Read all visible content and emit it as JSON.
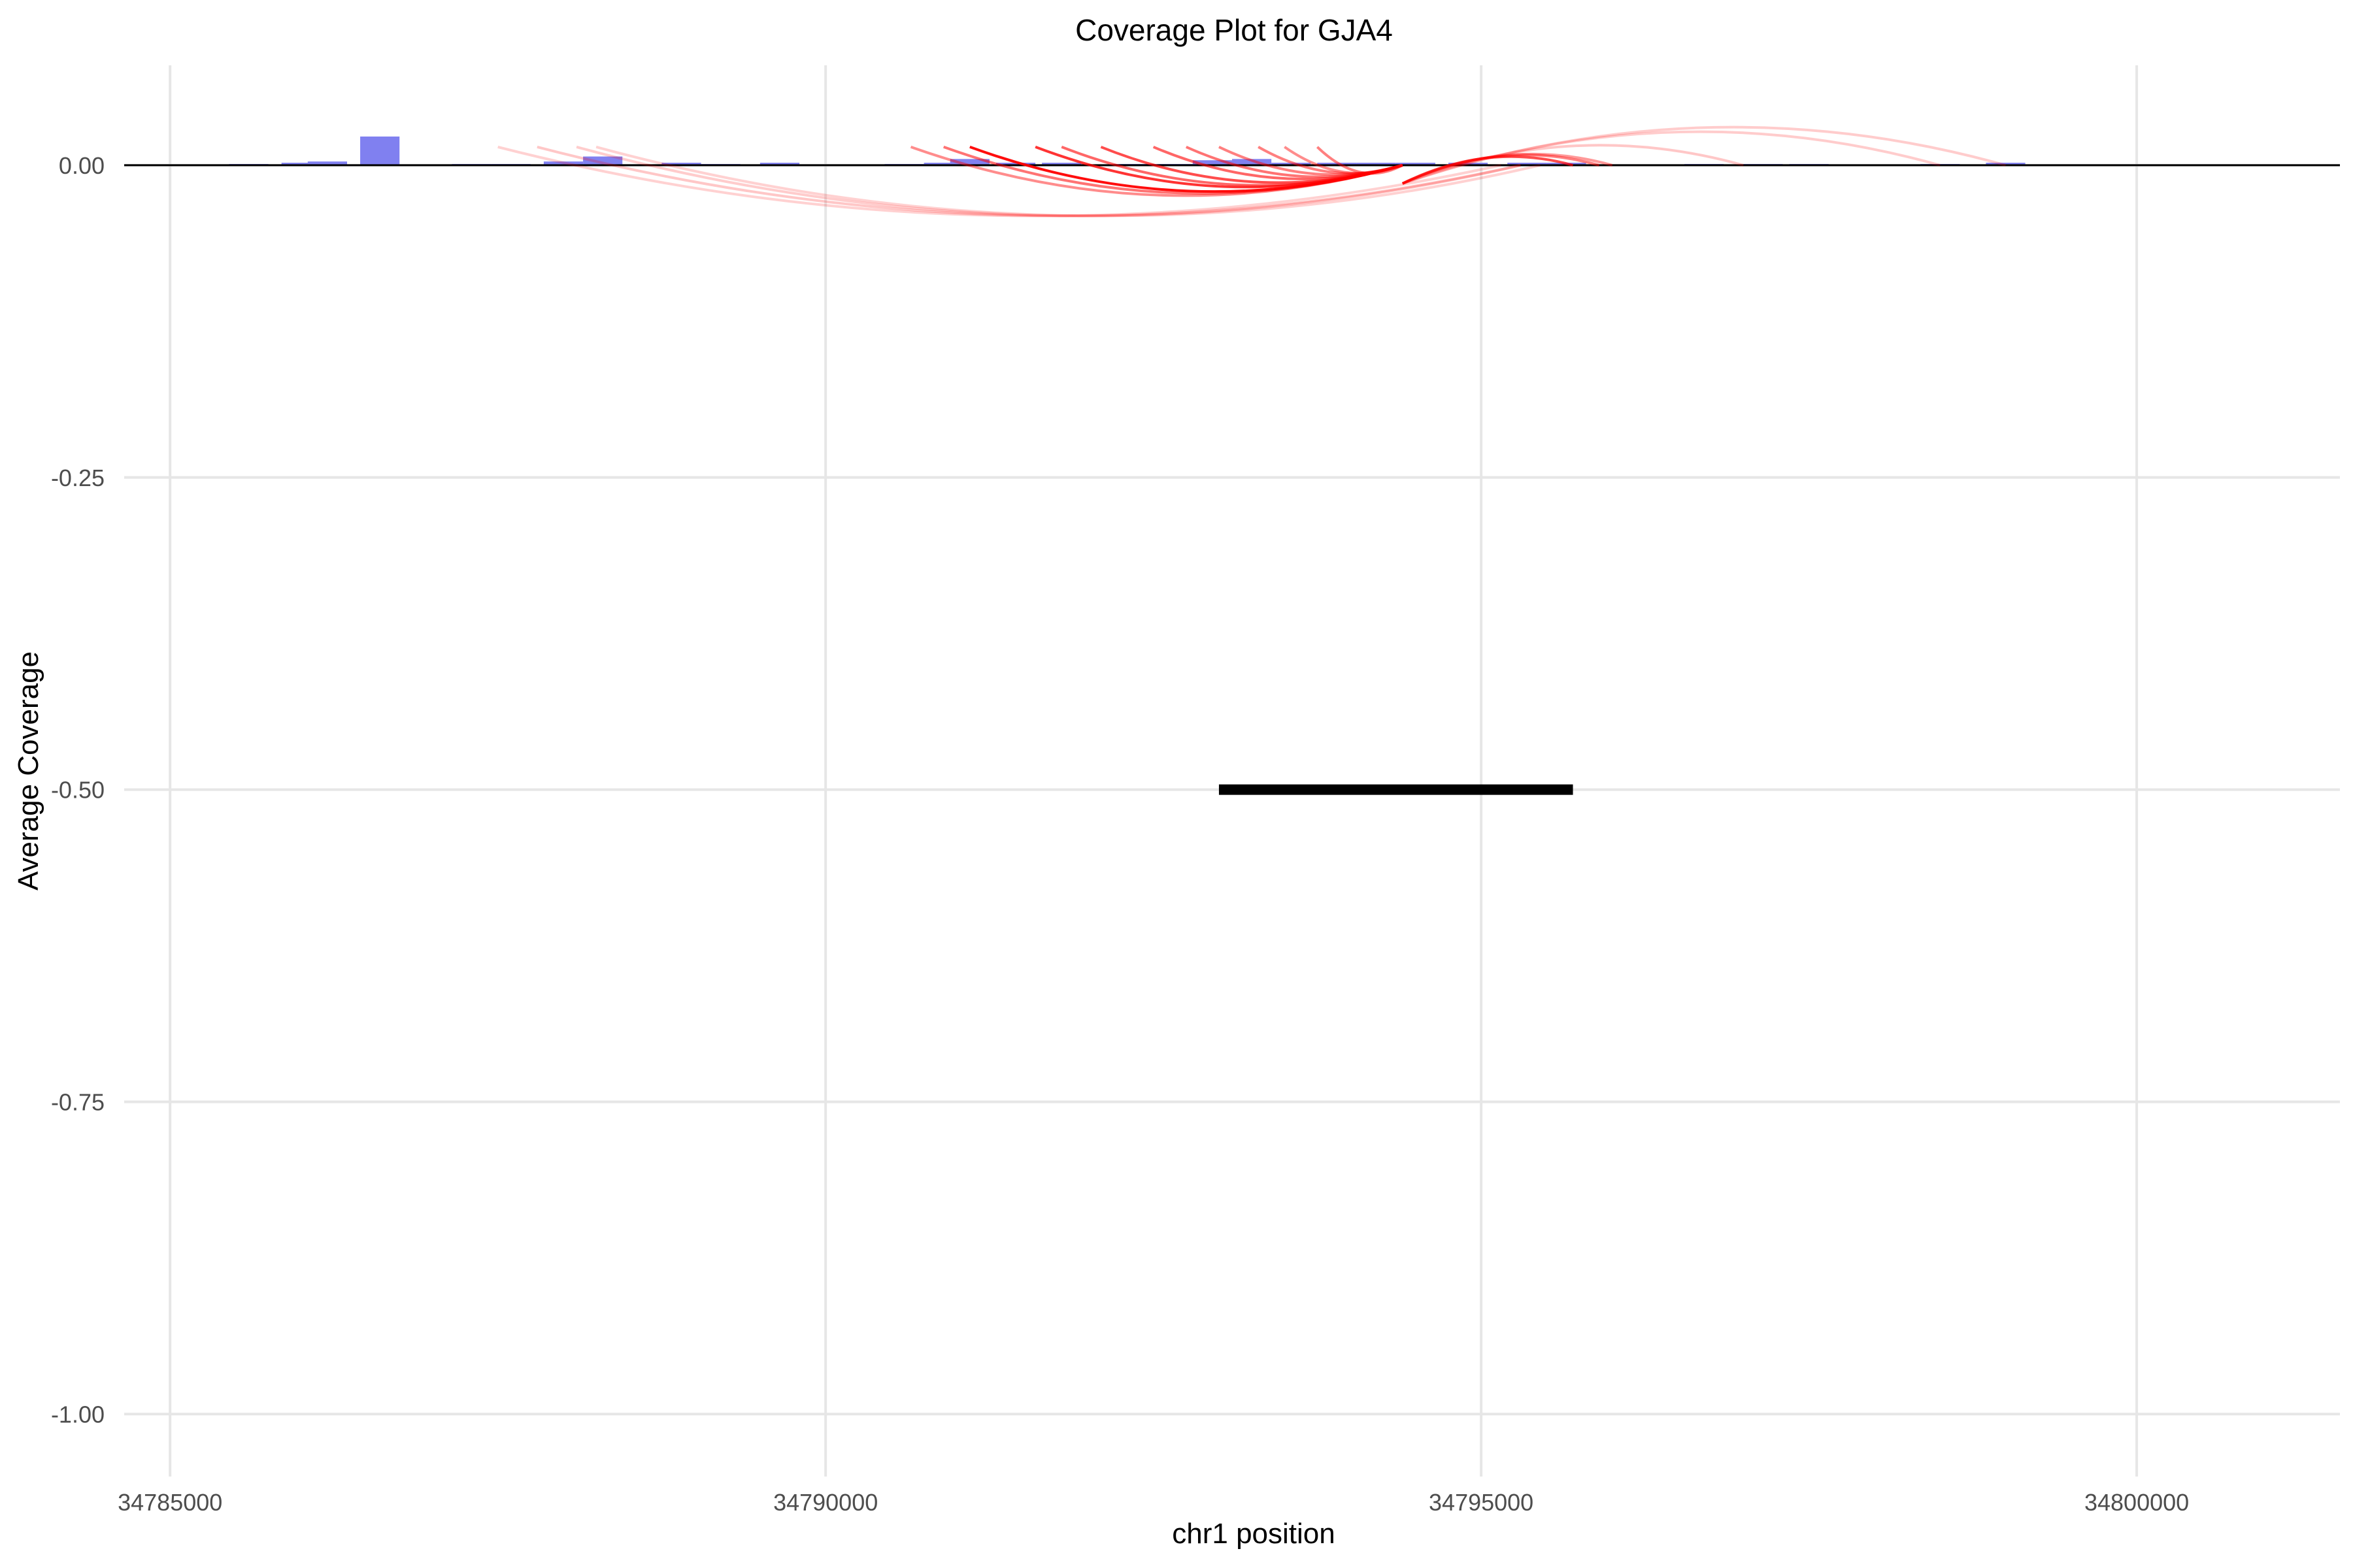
{
  "chart_data": {
    "type": "bar",
    "title": "Coverage Plot for GJA4",
    "xlabel": "chr1 position",
    "ylabel": "Average Coverage",
    "xlim": [
      34784650,
      34801550
    ],
    "ylim": [
      -1.05,
      0.08
    ],
    "xticks": [
      34785000,
      34790000,
      34795000,
      34800000
    ],
    "xtick_labels": [
      "34785000",
      "34790000",
      "34795000",
      "34800000"
    ],
    "yticks": [
      0.0,
      -0.25,
      -0.5,
      -0.75,
      -1.0
    ],
    "ytick_labels": [
      "0.00",
      "-0.25",
      "-0.50",
      "-0.75",
      "-1.00"
    ],
    "grid": true,
    "zero_line": 0,
    "colors": {
      "coverage": "#8080f0",
      "junction": "#ff0000",
      "gene": "#000000",
      "grid": "#e6e6e6"
    },
    "coverage": {
      "bin_width": 300,
      "x": [
        34785600,
        34786000,
        34786200,
        34786600,
        34787300,
        34787600,
        34788000,
        34788300,
        34788900,
        34789200,
        34789650,
        34790600,
        34790900,
        34791100,
        34791450,
        34791800,
        34792350,
        34792650,
        34792950,
        34793250,
        34793550,
        34793900,
        34794200,
        34794500,
        34794900,
        34795350,
        34795650,
        34796700,
        34797150,
        34797500,
        34798500,
        34799000
      ],
      "values": [
        0.001,
        0.002,
        0.003,
        0.023,
        0.001,
        0.001,
        0.003,
        0.007,
        0.002,
        0.001,
        0.002,
        0.001,
        0.002,
        0.005,
        0.002,
        0.002,
        0.001,
        0.001,
        0.004,
        0.005,
        0.002,
        0.002,
        0.002,
        0.002,
        0.002,
        0.002,
        0.002,
        0.001,
        0.001,
        0.001,
        0.001,
        0.002
      ]
    },
    "junctions": [
      {
        "start": 34787500,
        "end": 34795150,
        "strength": 0.18
      },
      {
        "start": 34787800,
        "end": 34795300,
        "strength": 0.22
      },
      {
        "start": 34788100,
        "end": 34795300,
        "strength": 0.2
      },
      {
        "start": 34788250,
        "end": 34795450,
        "strength": 0.18
      },
      {
        "start": 34790650,
        "end": 34794400,
        "strength": 0.45
      },
      {
        "start": 34790900,
        "end": 34794400,
        "strength": 0.55
      },
      {
        "start": 34791100,
        "end": 34794400,
        "strength": 0.95
      },
      {
        "start": 34791600,
        "end": 34794400,
        "strength": 0.8
      },
      {
        "start": 34791800,
        "end": 34794400,
        "strength": 0.6
      },
      {
        "start": 34792100,
        "end": 34794400,
        "strength": 0.7
      },
      {
        "start": 34792500,
        "end": 34794400,
        "strength": 0.6
      },
      {
        "start": 34792750,
        "end": 34794400,
        "strength": 0.55
      },
      {
        "start": 34793000,
        "end": 34794400,
        "strength": 0.5
      },
      {
        "start": 34793300,
        "end": 34794400,
        "strength": 0.5
      },
      {
        "start": 34793500,
        "end": 34794400,
        "strength": 0.45
      },
      {
        "start": 34793750,
        "end": 34794400,
        "strength": 0.5
      },
      {
        "start": 34794400,
        "end": 34795700,
        "strength": 0.7
      },
      {
        "start": 34794400,
        "end": 34795900,
        "strength": 0.5
      },
      {
        "start": 34794400,
        "end": 34796000,
        "strength": 0.4
      },
      {
        "start": 34794400,
        "end": 34797000,
        "strength": 0.22
      },
      {
        "start": 34794400,
        "end": 34798500,
        "strength": 0.2
      },
      {
        "start": 34794400,
        "end": 34799000,
        "strength": 0.2
      }
    ],
    "gene_model": {
      "start": 34793000,
      "end": 34795700,
      "y": -0.5
    }
  }
}
